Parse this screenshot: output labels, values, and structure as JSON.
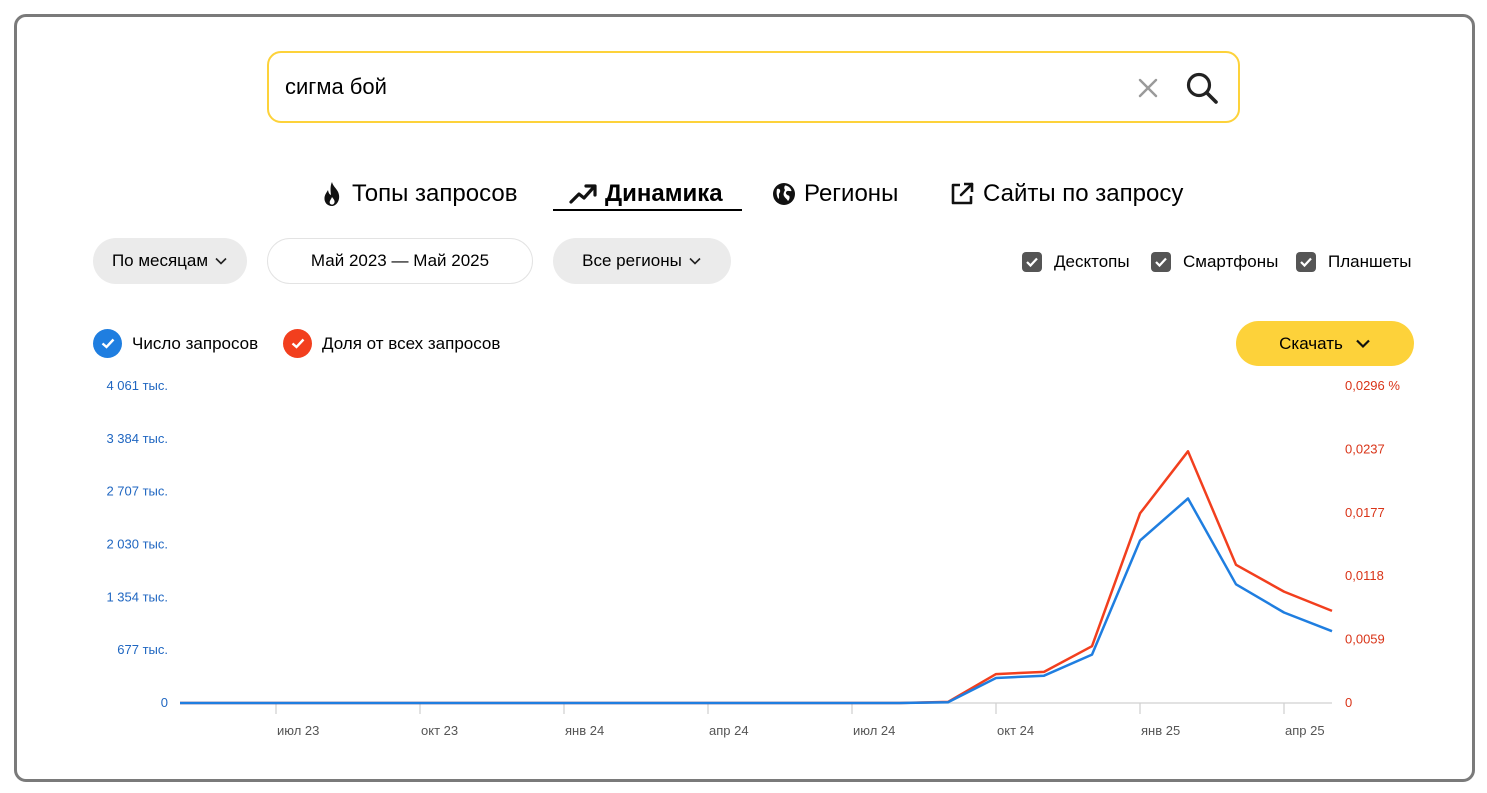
{
  "search": {
    "value": "сигма бой"
  },
  "tabs": [
    {
      "label": "Топы запросов",
      "icon": "fire-icon",
      "active": false
    },
    {
      "label": "Динамика",
      "icon": "trend-up-icon",
      "active": true
    },
    {
      "label": "Регионы",
      "icon": "globe-icon",
      "active": false
    },
    {
      "label": "Сайты по запросу",
      "icon": "external-link-icon",
      "active": false
    }
  ],
  "filters": {
    "period_label": "По месяцам",
    "date_range": "Май 2023 — Май 2025",
    "regions_label": "Все регионы"
  },
  "devices": [
    {
      "label": "Десктопы",
      "checked": true
    },
    {
      "label": "Смартфоны",
      "checked": true
    },
    {
      "label": "Планшеты",
      "checked": true
    }
  ],
  "legend": [
    {
      "label": "Число запросов",
      "color": "#1f7ee0"
    },
    {
      "label": "Доля от всех запросов",
      "color": "#f23f1e"
    }
  ],
  "download_label": "Скачать",
  "colors": {
    "accent": "#fdd23a",
    "count_line": "#1f7ee0",
    "share_line": "#f23f1e"
  },
  "chart_data": {
    "type": "line",
    "x": [
      "май 23",
      "июн 23",
      "июл 23",
      "авг 23",
      "сен 23",
      "окт 23",
      "ноя 23",
      "дек 23",
      "янв 24",
      "фев 24",
      "мар 24",
      "апр 24",
      "май 24",
      "июн 24",
      "июл 24",
      "авг 24",
      "сен 24",
      "окт 24",
      "ноя 24",
      "дек 24",
      "янв 25",
      "фев 25",
      "мар 25",
      "апр 25",
      "май 25"
    ],
    "x_tick_labels": [
      {
        "label": "июл 23",
        "index": 2
      },
      {
        "label": "окт 23",
        "index": 5
      },
      {
        "label": "янв 24",
        "index": 8
      },
      {
        "label": "апр 24",
        "index": 11
      },
      {
        "label": "июл 24",
        "index": 14
      },
      {
        "label": "окт 24",
        "index": 17
      },
      {
        "label": "янв 25",
        "index": 20
      },
      {
        "label": "апр 25",
        "index": 23
      }
    ],
    "y_left_ticks": [
      "0",
      "677 тыс.",
      "1 354 тыс.",
      "2 030 тыс.",
      "2 707 тыс.",
      "3 384 тыс.",
      "4 061 тыс."
    ],
    "y_right_ticks": [
      "0",
      "0,0059",
      "0,0118",
      "0,0177",
      "0,0237",
      "0,0296 %"
    ],
    "ylim_left": [
      0,
      4061000
    ],
    "ylim_right": [
      0,
      0.0296
    ],
    "series": [
      {
        "name": "Число запросов",
        "axis": "left",
        "values": [
          0,
          0,
          0,
          0,
          0,
          0,
          0,
          0,
          0,
          0,
          0,
          0,
          0,
          0,
          0,
          0,
          10000,
          320000,
          350000,
          620000,
          2080000,
          2620000,
          1520000,
          1160000,
          920000
        ]
      },
      {
        "name": "Доля от всех запросов",
        "axis": "right",
        "values": [
          0,
          0,
          0,
          0,
          0,
          0,
          0,
          0,
          0,
          0,
          0,
          0,
          0,
          0,
          0,
          0,
          0.0001,
          0.0027,
          0.0029,
          0.0053,
          0.0177,
          0.0235,
          0.0129,
          0.0104,
          0.0086
        ]
      }
    ],
    "grid": false
  }
}
